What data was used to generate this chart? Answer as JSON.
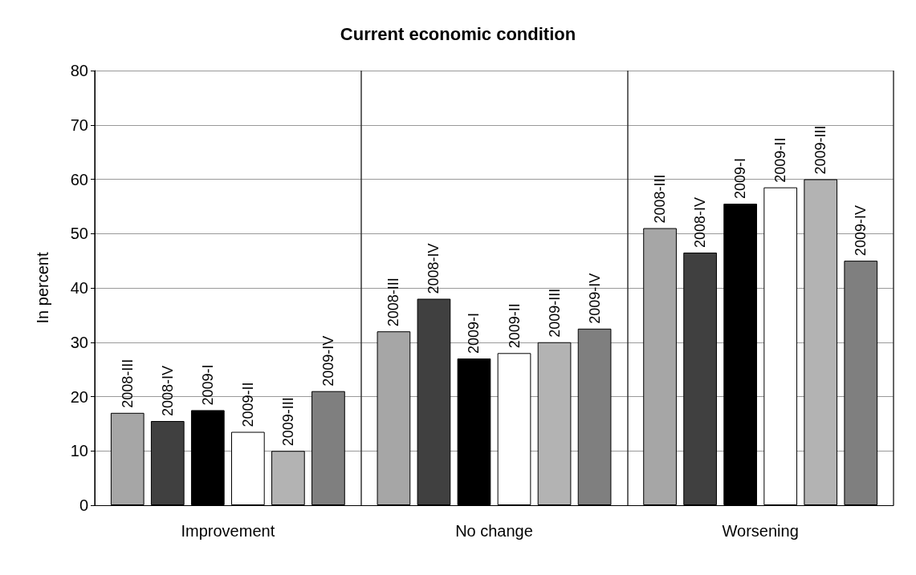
{
  "chart_data": {
    "type": "bar",
    "title": "Current economic condition",
    "ylabel": "In percent",
    "categories": [
      "Improvement",
      "No change",
      "Worsening"
    ],
    "series": [
      {
        "name": "2008-III",
        "color": "#a6a6a6",
        "values": [
          17,
          32,
          51
        ]
      },
      {
        "name": "2008-IV",
        "color": "#404040",
        "values": [
          15.5,
          38,
          46.5
        ]
      },
      {
        "name": "2009-I",
        "color": "#000000",
        "values": [
          17.5,
          27,
          55.5
        ]
      },
      {
        "name": "2009-II",
        "color": "#ffffff",
        "values": [
          13.5,
          28,
          58.5
        ]
      },
      {
        "name": "2009-III",
        "color": "#b3b3b3",
        "values": [
          10,
          30,
          60
        ]
      },
      {
        "name": "2009-IV",
        "color": "#7f7f7f",
        "values": [
          21,
          32.5,
          45
        ]
      }
    ],
    "ylim": [
      0,
      80
    ],
    "yticks": [
      0,
      10,
      20,
      30,
      40,
      50,
      60,
      70,
      80
    ],
    "grid": "y",
    "legend": false
  }
}
